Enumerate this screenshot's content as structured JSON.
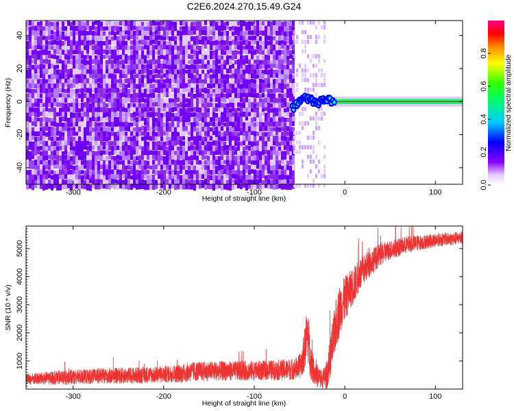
{
  "title": "C2E6.2024.270.15.49.G24",
  "chart_data": [
    {
      "type": "heatmap",
      "title": "C2E6.2024.270.15.49.G24",
      "xlabel": "Height of straight line (km)",
      "ylabel": "Frequency (Hz)",
      "xlim": [
        -352,
        130
      ],
      "ylim": [
        -50,
        49
      ],
      "x_ticks": [
        -300,
        -200,
        -100,
        0,
        100
      ],
      "x_tick_labels": [
        "-300",
        "-200",
        "-100",
        "0",
        "100"
      ],
      "y_ticks": [
        -40,
        -20,
        0,
        20,
        40
      ],
      "y_tick_labels": [
        "-40",
        "-20",
        "0",
        "20",
        "40"
      ],
      "noise_region_km": [
        -352,
        -57
      ],
      "sparse_region_km": [
        -57,
        -22
      ],
      "signal_track": {
        "x": [
          -58,
          -50,
          -44,
          -38,
          -32,
          -26,
          -20,
          -10,
          0,
          20,
          60,
          100,
          130
        ],
        "frequency_hz": [
          -4,
          0,
          2,
          1,
          -1,
          0,
          1,
          0,
          0,
          0,
          0,
          0,
          0
        ]
      },
      "colorbar": {
        "label": "Normalized spectral amplitude",
        "ticks": [
          0.0,
          0.2,
          0.4,
          0.6,
          0.8
        ],
        "tick_labels": [
          "0.0",
          "0.2",
          "0.4",
          "0.6",
          "0.8"
        ],
        "range": [
          0,
          1
        ],
        "colors": [
          "#ffffff",
          "#7a00ff",
          "#0000ff",
          "#00ccff",
          "#00ff00",
          "#ffff00",
          "#ff8800",
          "#ff0000",
          "#ff0088"
        ]
      },
      "grid": false
    },
    {
      "type": "line",
      "xlabel": "Height of straight line (km)",
      "ylabel": "SNR (10 * v/v)",
      "xlim": [
        -352,
        130
      ],
      "ylim": [
        0,
        5800
      ],
      "x_ticks": [
        -300,
        -200,
        -100,
        0,
        100
      ],
      "x_tick_labels": [
        "-300",
        "-200",
        "-100",
        "0",
        "100"
      ],
      "y_ticks": [
        1000,
        2000,
        3000,
        4000,
        5000
      ],
      "y_tick_labels": [
        "1000",
        "2000",
        "3000",
        "4000",
        "5000"
      ],
      "color": "#ee3333",
      "series": [
        {
          "x": [
            -352,
            -320,
            -300,
            -280,
            -260,
            -240,
            -220,
            -200,
            -180,
            -170,
            -150,
            -130,
            -110,
            -90,
            -70,
            -60,
            -52,
            -48,
            -45,
            -42,
            -40,
            -38,
            -35,
            -30,
            -25,
            -20,
            -15,
            -10,
            -5,
            0,
            5,
            10,
            15,
            20,
            25,
            30,
            40,
            50,
            60,
            70,
            80,
            90,
            100,
            110,
            120,
            130
          ],
          "y": [
            350,
            400,
            430,
            450,
            470,
            480,
            500,
            520,
            560,
            620,
            640,
            650,
            650,
            660,
            680,
            700,
            750,
            900,
            1300,
            2000,
            1700,
            1100,
            700,
            450,
            350,
            500,
            1300,
            2300,
            2900,
            3200,
            3500,
            3700,
            4000,
            4200,
            4400,
            4550,
            4800,
            4950,
            5050,
            5150,
            5200,
            5250,
            5300,
            5330,
            5350,
            5380
          ],
          "noise": [
            200,
            250,
            270,
            270,
            280,
            290,
            300,
            300,
            330,
            350,
            350,
            350,
            350,
            350,
            370,
            380,
            400,
            500,
            700,
            900,
            900,
            700,
            500,
            400,
            350,
            500,
            800,
            900,
            900,
            800,
            700,
            650,
            600,
            550,
            500,
            450,
            400,
            350,
            330,
            300,
            280,
            260,
            250,
            240,
            230,
            220
          ]
        }
      ],
      "grid": false
    }
  ]
}
